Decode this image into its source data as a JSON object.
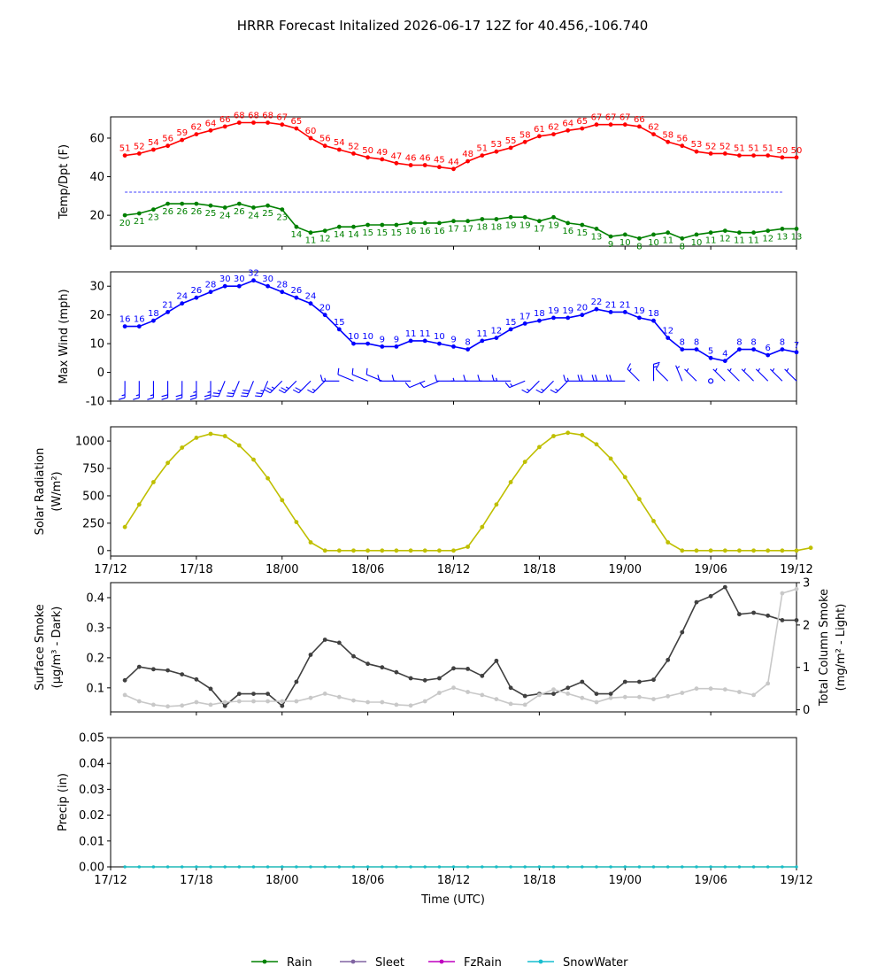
{
  "title": "HRRR Forecast Initalized 2026-06-17 12Z for 40.456,-106.740",
  "x_axis": {
    "xlabel": "Time (UTC)",
    "tick_labels": [
      "17/12",
      "17/18",
      "18/00",
      "18/06",
      "18/12",
      "18/18",
      "19/00",
      "19/06",
      "19/12"
    ],
    "hours_range": [
      0,
      48
    ]
  },
  "legend": {
    "placement": "bottom-center",
    "items": [
      {
        "name": "Rain",
        "color": "#008000"
      },
      {
        "name": "Sleet",
        "color": "#8064a2"
      },
      {
        "name": "FzRain",
        "color": "#bf00bf"
      },
      {
        "name": "SnowWater",
        "color": "#17becf"
      }
    ]
  },
  "chart_data": [
    {
      "id": "temp",
      "type": "line",
      "ylabel": "Temp/Dpt (F)",
      "ylim": [
        4,
        71
      ],
      "yticks": [
        20,
        40,
        60
      ],
      "freezing_line": 32,
      "freezing_color": "#0000ff",
      "series": [
        {
          "color": "#ff0000",
          "labeled": true,
          "values": [
            51,
            52,
            54,
            56,
            59,
            62,
            64,
            66,
            68,
            68,
            68,
            67,
            65,
            60,
            56,
            54,
            52,
            50,
            49,
            47,
            46,
            46,
            45,
            44,
            48,
            51,
            53,
            55,
            58,
            61,
            62,
            64,
            65,
            67,
            67,
            67,
            66,
            62,
            58,
            56,
            53,
            52,
            52,
            51,
            51,
            51,
            50,
            50
          ]
        },
        {
          "color": "#008000",
          "labeled": true,
          "values": [
            20,
            21,
            23,
            26,
            26,
            26,
            25,
            24,
            26,
            24,
            25,
            23,
            14,
            11,
            12,
            14,
            14,
            15,
            15,
            15,
            16,
            16,
            16,
            17,
            17,
            18,
            18,
            19,
            19,
            17,
            19,
            16,
            15,
            13,
            9,
            10,
            8,
            10,
            11,
            8,
            10,
            11,
            12,
            11,
            11,
            12,
            13,
            13
          ]
        }
      ]
    },
    {
      "id": "wind",
      "type": "line",
      "ylabel": "Max Wind (mph)",
      "ylim": [
        -10,
        35
      ],
      "yticks": [
        -10,
        0,
        10,
        20,
        30
      ],
      "barb_level": -3,
      "series": [
        {
          "color": "#0000ff",
          "labeled": true,
          "values": [
            16,
            16,
            18,
            21,
            24,
            26,
            28,
            30,
            30,
            32,
            30,
            28,
            26,
            24,
            20,
            15,
            10,
            10,
            9,
            9,
            11,
            11,
            10,
            9,
            8,
            11,
            12,
            15,
            17,
            18,
            19,
            19,
            20,
            22,
            21,
            21,
            19,
            18,
            12,
            8,
            8,
            5,
            4,
            8,
            8,
            6,
            8,
            7
          ]
        }
      ],
      "barb_directions": [
        "S",
        "S",
        "S",
        "S",
        "S",
        "S",
        "S",
        "SSW",
        "SSW",
        "SSW",
        "SSW",
        "SW",
        "SW",
        "SW",
        "SW",
        "W",
        "WNW",
        "WNW",
        "WNW",
        "W",
        "W",
        "WSW",
        "WSW",
        "W",
        "W",
        "W",
        "W",
        "W",
        "WSW",
        "SW",
        "SW",
        "SW",
        "W",
        "W",
        "W",
        "W",
        "NW",
        "N",
        "NW",
        "NNW",
        "NW",
        "calm",
        "NW",
        "NW",
        "NW",
        "NW",
        "NW",
        "NW"
      ]
    },
    {
      "id": "solar",
      "type": "line",
      "ylabel": "Solar Radiation",
      "ylabel2": "(W/m²)",
      "ylim": [
        -50,
        1130
      ],
      "yticks": [
        0,
        250,
        500,
        750,
        1000
      ],
      "show_x_labels": true,
      "series": [
        {
          "color": "#bfbf00",
          "labeled": false,
          "values": [
            215,
            420,
            625,
            800,
            940,
            1030,
            1065,
            1045,
            960,
            830,
            660,
            460,
            260,
            75,
            0,
            0,
            0,
            0,
            0,
            0,
            0,
            0,
            0,
            0,
            35,
            215,
            420,
            625,
            810,
            945,
            1045,
            1075,
            1055,
            970,
            840,
            670,
            470,
            270,
            75,
            0,
            0,
            0,
            0,
            0,
            0,
            0,
            0,
            0,
            25
          ]
        }
      ]
    },
    {
      "id": "smoke",
      "type": "line",
      "ylabel": "Surface Smoke",
      "ylabel2": "(μg/m³ - Dark)",
      "ylim": [
        0.02,
        0.45
      ],
      "yticks": [
        0.1,
        0.2,
        0.3,
        0.4
      ],
      "right_ylabel": "Total Column Smoke",
      "right_ylabel2": "(mg/m² - Light)",
      "right_ylim": [
        -0.05,
        3.0
      ],
      "right_yticks": [
        0,
        1,
        2,
        3
      ],
      "series": [
        {
          "color": "#404040",
          "labeled": false,
          "axis": "left",
          "values": [
            0.125,
            0.17,
            0.162,
            0.158,
            0.145,
            0.128,
            0.097,
            0.04,
            0.08,
            0.08,
            0.08,
            0.04,
            0.12,
            0.21,
            0.26,
            0.25,
            0.205,
            0.18,
            0.168,
            0.152,
            0.132,
            0.125,
            0.132,
            0.165,
            0.163,
            0.14,
            0.19,
            0.1,
            0.073,
            0.08,
            0.08,
            0.1,
            0.12,
            0.08,
            0.08,
            0.12,
            0.12,
            0.127,
            0.193,
            0.285,
            0.385,
            0.405,
            0.435,
            0.345,
            0.35,
            0.34,
            0.325,
            0.325
          ]
        },
        {
          "color": "#c8c8c8",
          "labeled": false,
          "axis": "right",
          "values": [
            0.35,
            0.2,
            0.12,
            0.08,
            0.1,
            0.18,
            0.12,
            0.18,
            0.2,
            0.2,
            0.2,
            0.2,
            0.2,
            0.28,
            0.38,
            0.3,
            0.22,
            0.18,
            0.18,
            0.12,
            0.1,
            0.2,
            0.4,
            0.52,
            0.42,
            0.35,
            0.25,
            0.14,
            0.12,
            0.35,
            0.48,
            0.38,
            0.28,
            0.18,
            0.28,
            0.3,
            0.3,
            0.25,
            0.32,
            0.4,
            0.5,
            0.5,
            0.48,
            0.42,
            0.35,
            0.62,
            2.75,
            2.85
          ]
        }
      ]
    },
    {
      "id": "precip",
      "type": "line",
      "ylabel": "Precip (in)",
      "ylim": [
        0,
        0.05
      ],
      "yticks": [
        0.0,
        0.01,
        0.02,
        0.03,
        0.04,
        0.05
      ],
      "show_x_labels": true,
      "series": [
        {
          "name": "Rain",
          "color": "#008000",
          "start": 1,
          "values": [
            0,
            0,
            0,
            0,
            0,
            0,
            0,
            0,
            0,
            0,
            0,
            0,
            0,
            0,
            0,
            0,
            0,
            0,
            0,
            0,
            0,
            0,
            0,
            0,
            0,
            0,
            0,
            0,
            0,
            0,
            0,
            0,
            0,
            0,
            0,
            0,
            0,
            0,
            0,
            0,
            0,
            0,
            0,
            0,
            0,
            0,
            0,
            0
          ]
        },
        {
          "name": "SnowWater",
          "color": "#17becf",
          "start": 1,
          "values": [
            0,
            0,
            0,
            0,
            0,
            0,
            0,
            0,
            0,
            0,
            0,
            0,
            0,
            0,
            0,
            0,
            0,
            0,
            0,
            0,
            0,
            0,
            0,
            0,
            0,
            0,
            0,
            0,
            0,
            0,
            0,
            0,
            0,
            0,
            0,
            0,
            0,
            0,
            0,
            0,
            0,
            0,
            0,
            0,
            0,
            0,
            0,
            0
          ]
        }
      ]
    }
  ]
}
